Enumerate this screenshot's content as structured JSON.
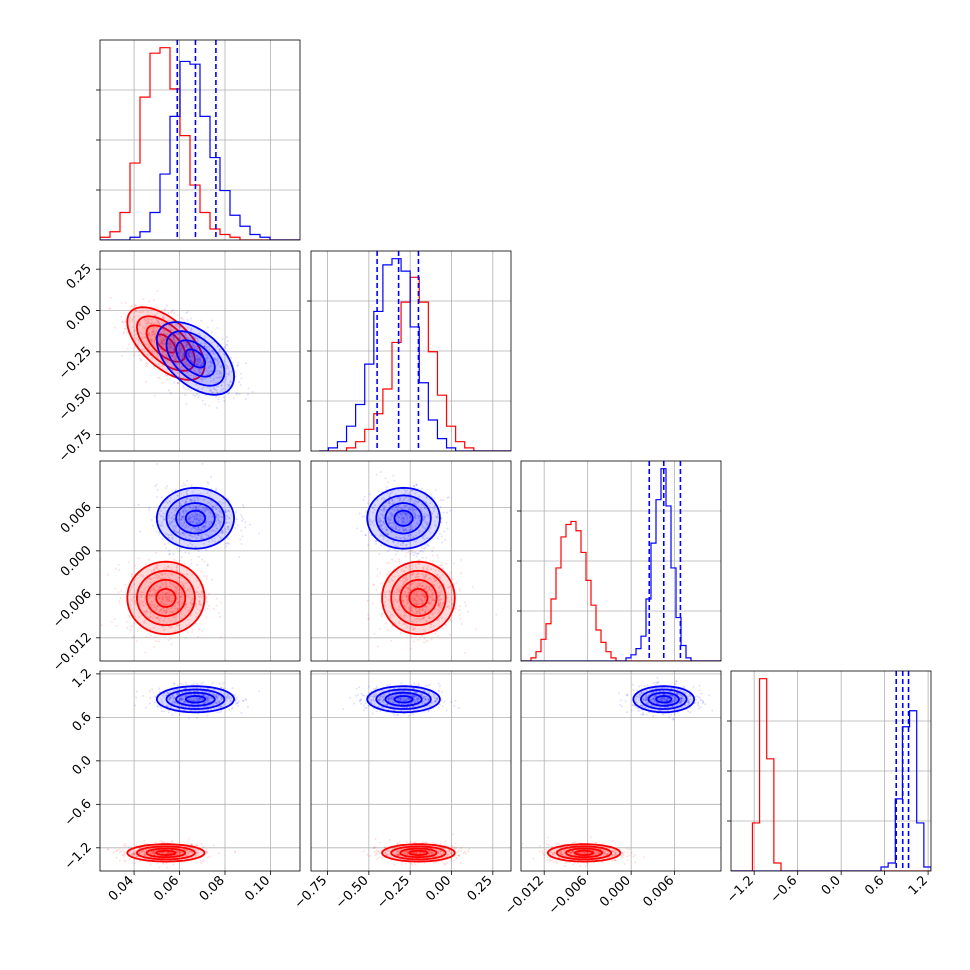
{
  "chart_data": {
    "type": "corner",
    "grid": true,
    "series": [
      {
        "name": "",
        "color": "#0000ff",
        "mean": [
          0.067,
          -0.29,
          0.0045,
          0.85
        ],
        "std": [
          0.0085,
          0.11,
          0.0021,
          0.09
        ],
        "corr": [
          [
            1,
            -0.5,
            0,
            0
          ],
          [
            -0.5,
            1,
            0,
            0
          ],
          [
            0,
            0,
            1,
            0
          ],
          [
            0,
            0,
            0,
            1
          ]
        ],
        "quantiles": [
          [
            0.059,
            0.067,
            0.076
          ],
          [
            -0.45,
            -0.32,
            -0.2
          ],
          [
            0.0025,
            0.0045,
            0.0068
          ],
          [
            0.76,
            0.85,
            0.93
          ]
        ]
      },
      {
        "name": "",
        "color": "#ff0000",
        "mean": [
          0.054,
          -0.2,
          -0.0065,
          -1.27
        ],
        "std": [
          0.0085,
          0.11,
          0.0025,
          0.06
        ],
        "corr": [
          [
            1,
            -0.6,
            0,
            0
          ],
          [
            -0.6,
            1,
            0,
            0
          ],
          [
            0,
            0,
            1,
            0
          ],
          [
            0,
            0,
            0,
            1
          ]
        ],
        "quantiles": null
      }
    ],
    "parameters": [
      {
        "range": [
          0.025,
          0.113
        ],
        "ticks": [
          "0.04",
          "0.06",
          "0.08",
          "0.10"
        ],
        "tick_values": [
          0.04,
          0.06,
          0.08,
          0.1
        ]
      },
      {
        "range": [
          -0.85,
          0.36
        ],
        "ticks": [
          "−0.75",
          "−0.50",
          "−0.25",
          "0.00",
          "0.25"
        ],
        "tick_values": [
          -0.75,
          -0.5,
          -0.25,
          0.0,
          0.25
        ]
      },
      {
        "range": [
          -0.0152,
          0.0124
        ],
        "ticks": [
          "−0.012",
          "−0.006",
          "0.000",
          "0.006"
        ],
        "tick_values": [
          -0.012,
          -0.006,
          0.0,
          0.006
        ]
      },
      {
        "range": [
          -1.52,
          1.24
        ],
        "ticks": [
          "−1.2",
          "−0.6",
          "0.0",
          "0.6",
          "1.2"
        ],
        "tick_values": [
          -1.2,
          -0.6,
          0.0,
          0.6,
          1.2
        ]
      }
    ],
    "histograms": [
      {
        "edges_count": 20,
        "blue": [
          0,
          0,
          0,
          1,
          3,
          10,
          24,
          45,
          65,
          64,
          45,
          30,
          18,
          9,
          5,
          2,
          1,
          0,
          0,
          0
        ],
        "red": [
          1,
          3,
          10,
          28,
          52,
          68,
          70,
          55,
          38,
          20,
          10,
          4,
          2,
          1,
          0,
          0,
          0,
          0,
          0,
          0
        ]
      },
      {
        "edges_count": 20,
        "blue": [
          0,
          1,
          3,
          8,
          15,
          28,
          45,
          60,
          62,
          58,
          40,
          22,
          10,
          4,
          1,
          0,
          0,
          0,
          0,
          0
        ],
        "red": [
          0,
          0,
          0,
          1,
          3,
          7,
          12,
          20,
          35,
          48,
          56,
          48,
          32,
          18,
          8,
          3,
          1,
          0,
          0,
          0
        ],
        "range_override": [
          -0.8,
          0.3
        ]
      },
      {
        "edges_count": 40,
        "blue": [
          0,
          0,
          0,
          0,
          0,
          0,
          0,
          0,
          0,
          0,
          0,
          0,
          0,
          0,
          0,
          0,
          0,
          0,
          0,
          0,
          0,
          1,
          2,
          4,
          8,
          20,
          38,
          52,
          62,
          50,
          30,
          14,
          5,
          1,
          0,
          0,
          0,
          0,
          0,
          0
        ],
        "red": [
          0,
          0,
          1,
          3,
          7,
          12,
          20,
          30,
          40,
          44,
          45,
          42,
          35,
          26,
          18,
          10,
          6,
          3,
          1,
          0,
          0,
          0,
          0,
          0,
          0,
          0,
          0,
          0,
          0,
          0,
          0,
          0,
          0,
          0,
          0,
          0,
          0,
          0,
          0,
          0
        ]
      },
      {
        "edges_count": 28,
        "blue": [
          0,
          0,
          0,
          0,
          0,
          0,
          0,
          0,
          0,
          0,
          0,
          0,
          0,
          0,
          0,
          0,
          0,
          0,
          0,
          0,
          0,
          1,
          2,
          18,
          36,
          40,
          12,
          1
        ],
        "red": [
          0,
          0,
          0,
          12,
          48,
          28,
          2,
          0,
          0,
          0,
          0,
          0,
          0,
          0,
          0,
          0,
          0,
          0,
          0,
          0,
          0,
          0,
          0,
          0,
          0,
          0,
          0,
          0
        ]
      }
    ]
  }
}
